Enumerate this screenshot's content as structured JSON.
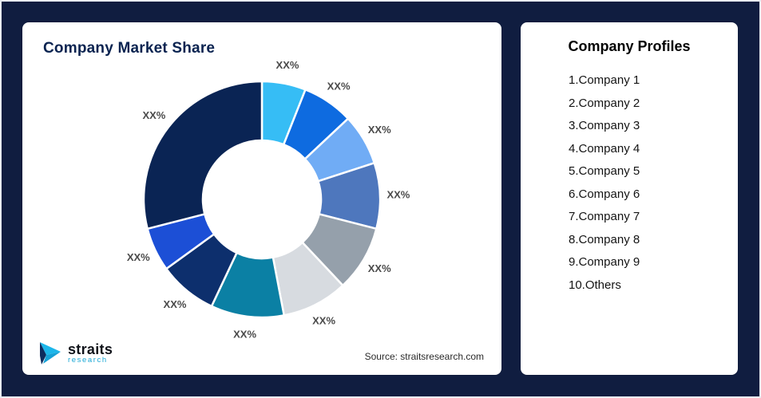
{
  "page": {
    "background": "#101d40"
  },
  "market_share_card": {
    "title": "Company Market Share",
    "source_note": "Source: straitsresearch.com"
  },
  "logo": {
    "brand": "straits",
    "sub_brand": "research"
  },
  "profiles_card": {
    "title": "Company Profiles",
    "items": [
      "1.Company 1",
      "2.Company 2",
      "3.Company 3",
      "4.Company 4",
      "5.Company 5",
      "6.Company 6",
      "7.Company 7",
      "8.Company 8",
      "9.Company 9",
      "10.Others"
    ]
  },
  "chart_data": {
    "type": "pie",
    "variant": "donut",
    "title": "Company Market Share",
    "legend_position": "none",
    "value_labels_shown": "XX% (placeholder percentages, actual values not disclosed)",
    "segments": [
      {
        "label": "XX%",
        "value": 6,
        "color": "#36bdf5"
      },
      {
        "label": "XX%",
        "value": 7,
        "color": "#0e6be0"
      },
      {
        "label": "XX%",
        "value": 7,
        "color": "#70acf5"
      },
      {
        "label": "XX%",
        "value": 9,
        "color": "#4e77bd"
      },
      {
        "label": "XX%",
        "value": 9,
        "color": "#95a0ab"
      },
      {
        "label": "XX%",
        "value": 9,
        "color": "#d7dbe0"
      },
      {
        "label": "XX%",
        "value": 10,
        "color": "#0b80a4"
      },
      {
        "label": "XX%",
        "value": 8,
        "color": "#0d2f6d"
      },
      {
        "label": "XX%",
        "value": 6,
        "color": "#1c4fd6"
      },
      {
        "label": "XX%",
        "value": 29,
        "color": "#0a2454"
      }
    ],
    "geometry": {
      "outer_radius": 148,
      "inner_radius": 74,
      "label_radius": 171
    }
  }
}
